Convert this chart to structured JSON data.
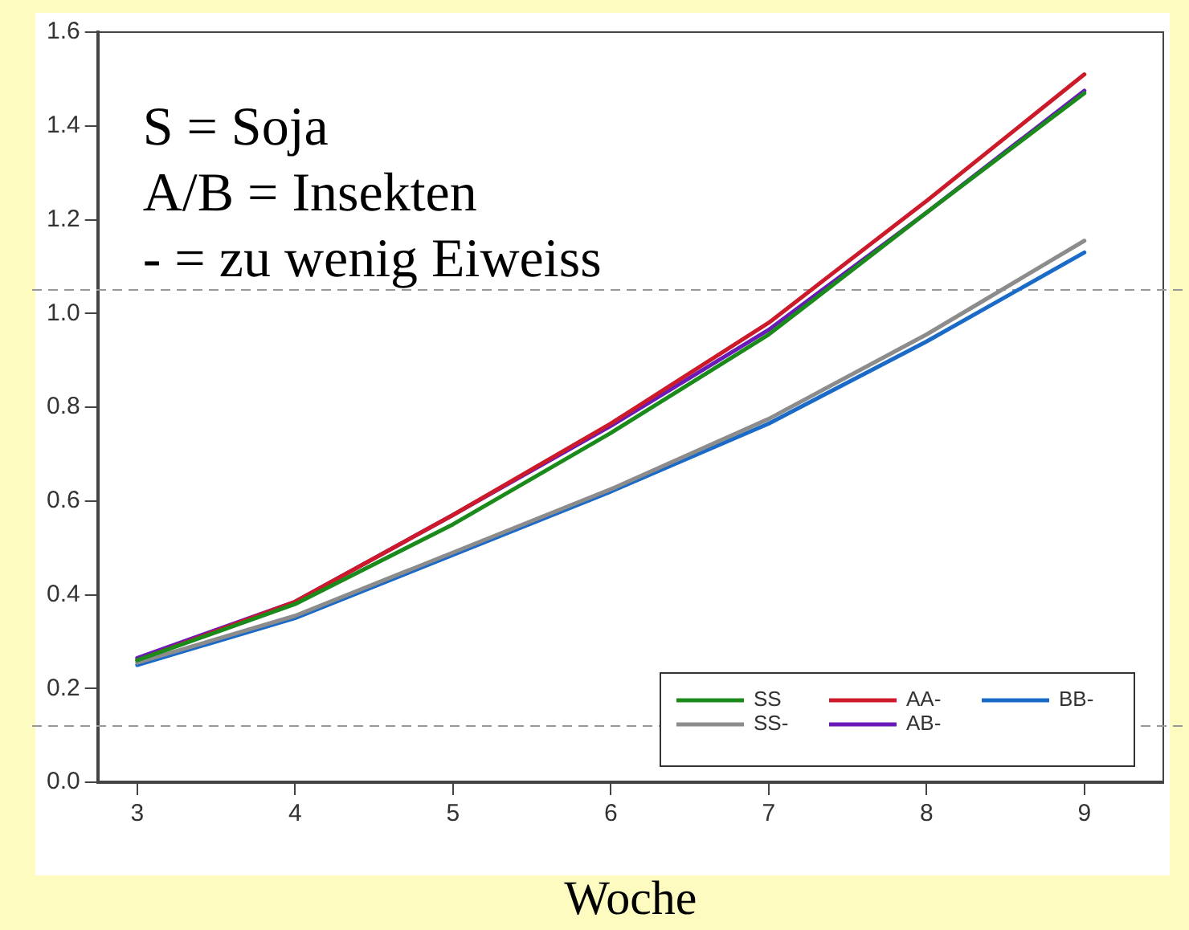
{
  "chart_data": {
    "type": "line",
    "xlabel": "Woche",
    "annotations": [
      "S = Soja",
      "A/B = Insekten",
      "- = zu wenig Eiweiss"
    ],
    "x": [
      3,
      4,
      5,
      6,
      7,
      8,
      9
    ],
    "series": [
      {
        "name": "SS",
        "color": "#1a8a1a",
        "values": [
          0.26,
          0.38,
          0.55,
          0.745,
          0.955,
          1.215,
          1.47
        ]
      },
      {
        "name": "SS-",
        "color": "#8c8c8c",
        "values": [
          0.255,
          0.355,
          0.49,
          0.625,
          0.775,
          0.955,
          1.155
        ]
      },
      {
        "name": "AA-",
        "color": "#cc1a2a",
        "values": [
          0.26,
          0.385,
          0.57,
          0.765,
          0.98,
          1.24,
          1.51
        ]
      },
      {
        "name": "AB-",
        "color": "#6a1ab8",
        "values": [
          0.265,
          0.385,
          0.57,
          0.76,
          0.965,
          1.215,
          1.475
        ]
      },
      {
        "name": "BB-",
        "color": "#1a6ac8",
        "values": [
          0.25,
          0.35,
          0.485,
          0.62,
          0.765,
          0.94,
          1.13
        ]
      }
    ],
    "xlim": [
      2.75,
      9.5
    ],
    "xticks": [
      3,
      4,
      5,
      6,
      7,
      8,
      9
    ],
    "ylim": [
      0,
      1.6
    ],
    "yticks": [
      {
        "value": 0,
        "label": "0.0"
      },
      0.2,
      0.4,
      0.6,
      0.8,
      {
        "value": 1,
        "label": "1.0"
      },
      1.2,
      1.4,
      1.6
    ],
    "ref_lines": [
      {
        "axis": "y",
        "value": 1.05,
        "color": "#999999",
        "line_style": "dashed"
      },
      {
        "axis": "y",
        "value": 0.12,
        "color": "#999999",
        "line_style": "dashed"
      }
    ],
    "grid": false,
    "legend": "bottom right",
    "marker": "none",
    "line_style": "solid"
  }
}
